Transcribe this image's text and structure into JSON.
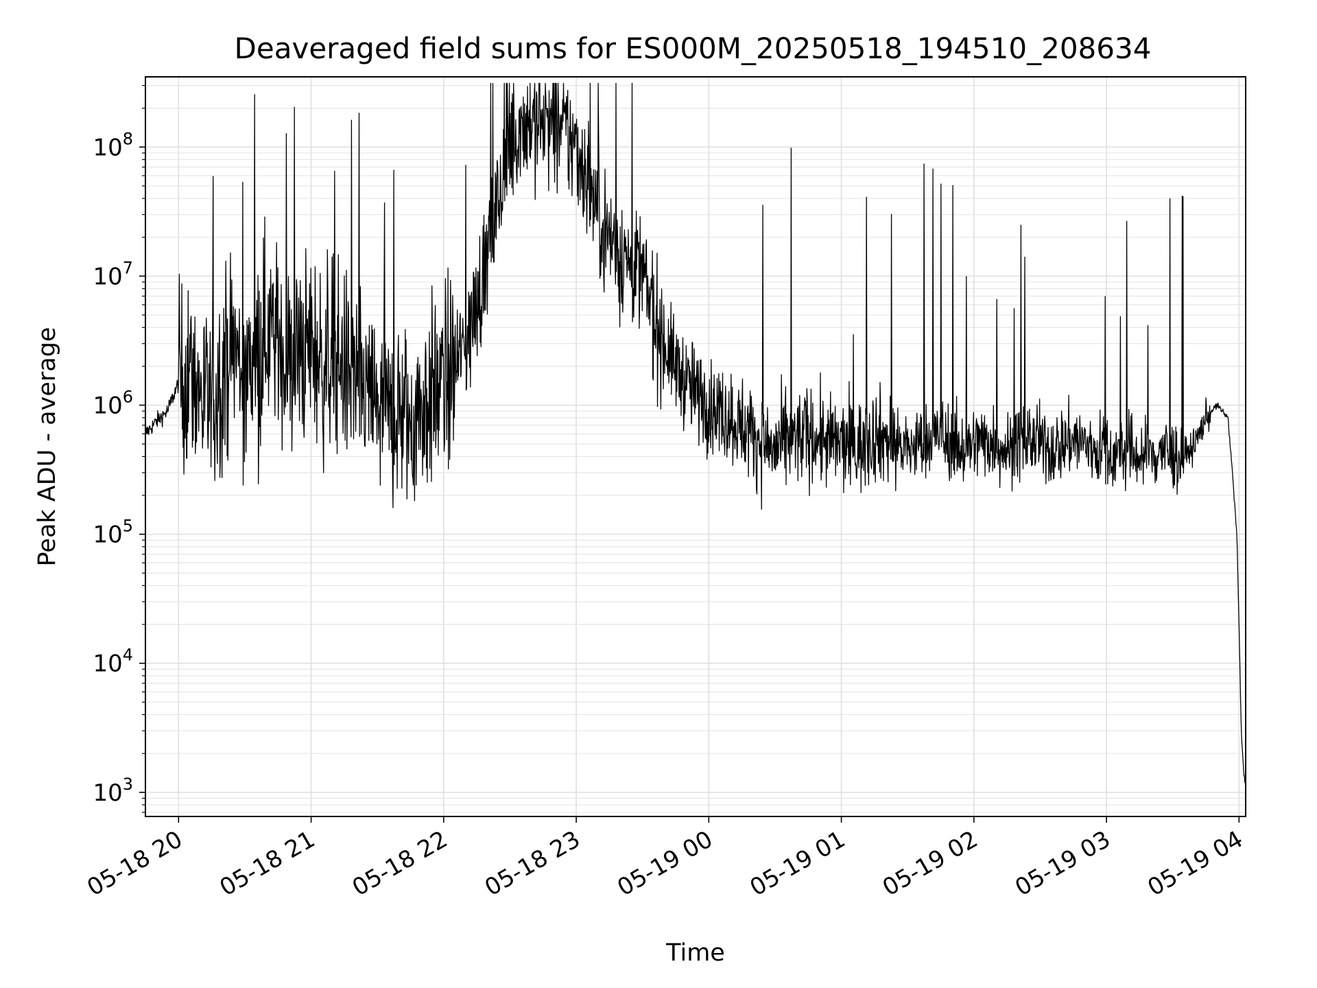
{
  "chart_data": {
    "type": "line",
    "title": "Deaveraged field sums for ES000M_20250518_194510_208634",
    "xlabel": "Time",
    "ylabel": "Peak ADU - average",
    "yscale": "log",
    "ylim": [
      650,
      350000000
    ],
    "xlim": [
      "2025-05-18 19:45",
      "2025-05-19 04:03"
    ],
    "grid": true,
    "line_color": "#000000",
    "x_ticks": [
      {
        "value": "2025-05-18 20:00",
        "label": "05-18 20"
      },
      {
        "value": "2025-05-18 21:00",
        "label": "05-18 21"
      },
      {
        "value": "2025-05-18 22:00",
        "label": "05-18 22"
      },
      {
        "value": "2025-05-18 23:00",
        "label": "05-18 23"
      },
      {
        "value": "2025-05-19 00:00",
        "label": "05-19 00"
      },
      {
        "value": "2025-05-19 01:00",
        "label": "05-19 01"
      },
      {
        "value": "2025-05-19 02:00",
        "label": "05-19 02"
      },
      {
        "value": "2025-05-19 03:00",
        "label": "05-19 03"
      },
      {
        "value": "2025-05-19 04:00",
        "label": "05-19 04"
      }
    ],
    "y_ticks": [
      {
        "value": 1000,
        "base": "10",
        "exp": "3"
      },
      {
        "value": 10000,
        "base": "10",
        "exp": "4"
      },
      {
        "value": 100000,
        "base": "10",
        "exp": "5"
      },
      {
        "value": 1000000,
        "base": "10",
        "exp": "6"
      },
      {
        "value": 10000000,
        "base": "10",
        "exp": "7"
      },
      {
        "value": 100000000,
        "base": "10",
        "exp": "8"
      }
    ],
    "series": [
      {
        "x": [
          "2025-05-18 19:45",
          "2025-05-18 19:50",
          "2025-05-18 19:55",
          "2025-05-18 20:00",
          "2025-05-18 20:05",
          "2025-05-18 20:10",
          "2025-05-18 20:15",
          "2025-05-18 20:20",
          "2025-05-18 20:25",
          "2025-05-18 20:30",
          "2025-05-18 20:35",
          "2025-05-18 20:40",
          "2025-05-18 20:45",
          "2025-05-18 20:50",
          "2025-05-18 20:55",
          "2025-05-18 21:00",
          "2025-05-18 21:05",
          "2025-05-18 21:10",
          "2025-05-18 21:15",
          "2025-05-18 21:20",
          "2025-05-18 21:25",
          "2025-05-18 21:30",
          "2025-05-18 21:35",
          "2025-05-18 21:40",
          "2025-05-18 21:45",
          "2025-05-18 21:50",
          "2025-05-18 21:55",
          "2025-05-18 22:00",
          "2025-05-18 22:05",
          "2025-05-18 22:10",
          "2025-05-18 22:15",
          "2025-05-18 22:20",
          "2025-05-18 22:25",
          "2025-05-18 22:30",
          "2025-05-18 22:35",
          "2025-05-18 22:40",
          "2025-05-18 22:45",
          "2025-05-18 22:50",
          "2025-05-18 22:55",
          "2025-05-18 23:00",
          "2025-05-18 23:05",
          "2025-05-18 23:10",
          "2025-05-18 23:15",
          "2025-05-18 23:20",
          "2025-05-18 23:25",
          "2025-05-18 23:30",
          "2025-05-18 23:35",
          "2025-05-18 23:40",
          "2025-05-18 23:45",
          "2025-05-18 23:50",
          "2025-05-18 23:55",
          "2025-05-19 00:00",
          "2025-05-19 00:05",
          "2025-05-19 00:10",
          "2025-05-19 00:15",
          "2025-05-19 00:20",
          "2025-05-19 00:25",
          "2025-05-19 00:30",
          "2025-05-19 00:35",
          "2025-05-19 00:40",
          "2025-05-19 00:45",
          "2025-05-19 00:50",
          "2025-05-19 00:55",
          "2025-05-19 01:00",
          "2025-05-19 01:05",
          "2025-05-19 01:10",
          "2025-05-19 01:15",
          "2025-05-19 01:20",
          "2025-05-19 01:25",
          "2025-05-19 01:30",
          "2025-05-19 01:35",
          "2025-05-19 01:40",
          "2025-05-19 01:45",
          "2025-05-19 01:50",
          "2025-05-19 01:55",
          "2025-05-19 02:00",
          "2025-05-19 02:05",
          "2025-05-19 02:10",
          "2025-05-19 02:15",
          "2025-05-19 02:20",
          "2025-05-19 02:25",
          "2025-05-19 02:30",
          "2025-05-19 02:35",
          "2025-05-19 02:40",
          "2025-05-19 02:45",
          "2025-05-19 02:50",
          "2025-05-19 02:55",
          "2025-05-19 03:00",
          "2025-05-19 03:05",
          "2025-05-19 03:10",
          "2025-05-19 03:15",
          "2025-05-19 03:20",
          "2025-05-19 03:25",
          "2025-05-19 03:30",
          "2025-05-19 03:35",
          "2025-05-19 03:40",
          "2025-05-19 03:45",
          "2025-05-19 03:50",
          "2025-05-19 03:55",
          "2025-05-19 03:57",
          "2025-05-19 03:59",
          "2025-05-19 04:00",
          "2025-05-19 04:01",
          "2025-05-19 04:02",
          "2025-05-19 04:03"
        ],
        "y": [
          600000,
          750000,
          900000,
          1500000,
          1800000,
          1200000,
          900000,
          2000000,
          3000000,
          1500000,
          2500000,
          4000000,
          3000000,
          2000000,
          2500000,
          3000000,
          2000000,
          2500000,
          2000000,
          1500000,
          1200000,
          1000000,
          800000,
          900000,
          700000,
          1000000,
          1200000,
          1500000,
          2000000,
          3000000,
          6000000,
          15000000,
          40000000,
          100000000,
          150000000,
          160000000,
          150000000,
          140000000,
          130000000,
          100000000,
          60000000,
          30000000,
          20000000,
          15000000,
          12000000,
          10000000,
          5000000,
          3000000,
          2000000,
          1500000,
          1200000,
          1000000,
          900000,
          800000,
          700000,
          600000,
          500000,
          450000,
          500000,
          550000,
          600000,
          550000,
          500000,
          500000,
          450000,
          500000,
          600000,
          550000,
          500000,
          450000,
          500000,
          550000,
          600000,
          500000,
          450000,
          500000,
          550000,
          500000,
          450000,
          500000,
          550000,
          500000,
          450000,
          500000,
          550000,
          500000,
          450000,
          450000,
          400000,
          450000,
          400000,
          400000,
          450000,
          400000,
          400000,
          500000,
          800000,
          1000000,
          800000,
          300000,
          100000,
          20000,
          3000,
          1500,
          1100
        ]
      }
    ]
  }
}
